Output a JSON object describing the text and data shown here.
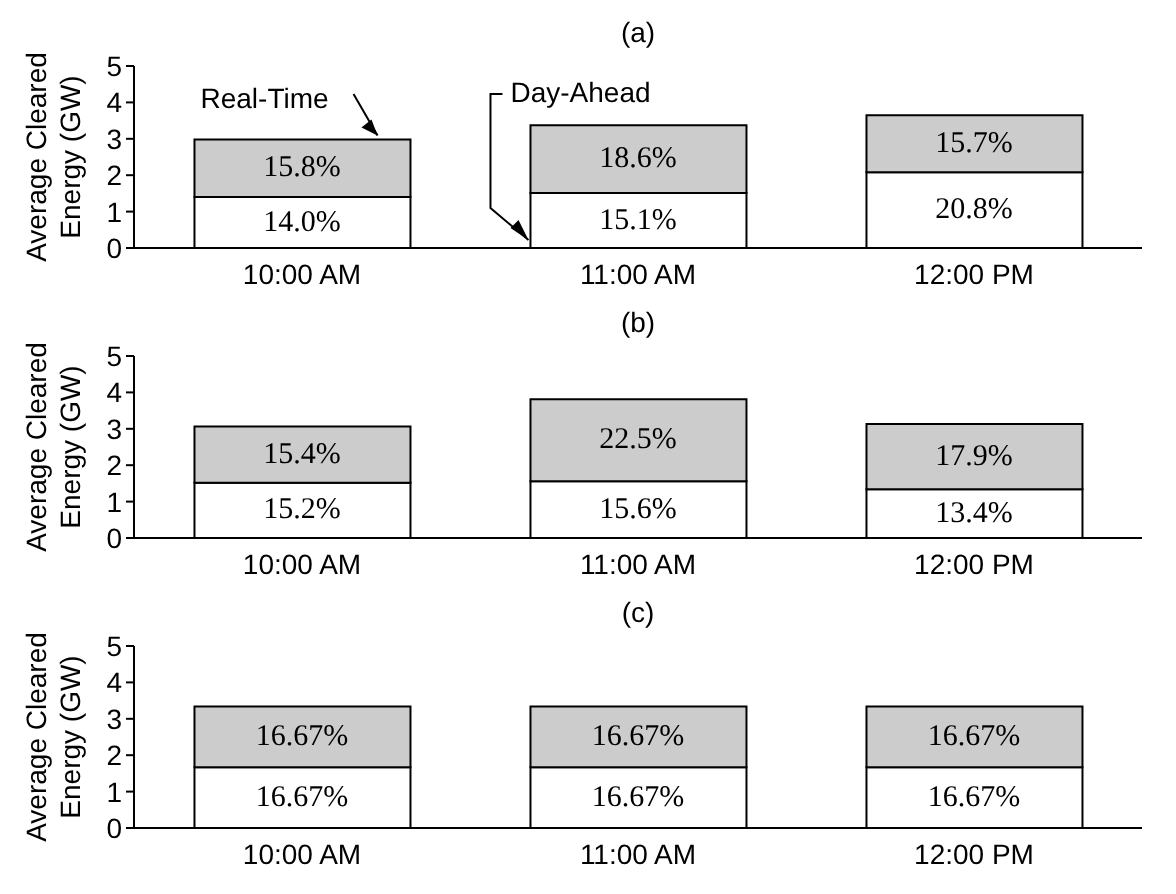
{
  "chart_data": [
    {
      "type": "bar",
      "title": "(a)",
      "ylabel": "Average Cleared Energy (GW)",
      "categories": [
        "10:00 AM",
        "11:00 AM",
        "12:00 PM"
      ],
      "stacked": true,
      "ylim": [
        0,
        5
      ],
      "yticks": [
        0,
        1,
        2,
        3,
        4,
        5
      ],
      "grid": false,
      "series": [
        {
          "name": "Day-Ahead",
          "color": "#ffffff",
          "values": [
            1.4,
            1.51,
            2.08
          ]
        },
        {
          "name": "Real-Time",
          "color": "#cccccc",
          "values": [
            1.58,
            1.86,
            1.57
          ]
        }
      ],
      "annotations": [
        "14.0%",
        "15.1%",
        "20.8%",
        "15.8%",
        "18.6%",
        "15.7%"
      ]
    },
    {
      "type": "bar",
      "title": "(b)",
      "ylabel": "Average Cleared Energy (GW)",
      "categories": [
        "10:00 AM",
        "11:00 AM",
        "12:00 PM"
      ],
      "stacked": true,
      "ylim": [
        0,
        5
      ],
      "yticks": [
        0,
        1,
        2,
        3,
        4,
        5
      ],
      "grid": false,
      "series": [
        {
          "color": "#ffffff",
          "values": [
            1.52,
            1.56,
            1.34
          ]
        },
        {
          "color": "#cccccc",
          "values": [
            1.54,
            2.25,
            1.79
          ]
        }
      ],
      "annotations": [
        "15.2%",
        "15.6%",
        "13.4%",
        "15.4%",
        "22.5%",
        "17.9%"
      ]
    },
    {
      "type": "bar",
      "title": "(c)",
      "ylabel": "Average Cleared Energy (GW)",
      "categories": [
        "10:00 AM",
        "11:00 AM",
        "12:00 PM"
      ],
      "stacked": true,
      "ylim": [
        0,
        5
      ],
      "yticks": [
        0,
        1,
        2,
        3,
        4,
        5
      ],
      "grid": false,
      "series": [
        {
          "color": "#ffffff",
          "values": [
            1.67,
            1.67,
            1.67
          ]
        },
        {
          "color": "#cccccc",
          "values": [
            1.67,
            1.67,
            1.67
          ]
        }
      ],
      "annotations": [
        "16.67%",
        "16.67%",
        "16.67%",
        "16.67%",
        "16.67%",
        "16.67%"
      ]
    }
  ]
}
